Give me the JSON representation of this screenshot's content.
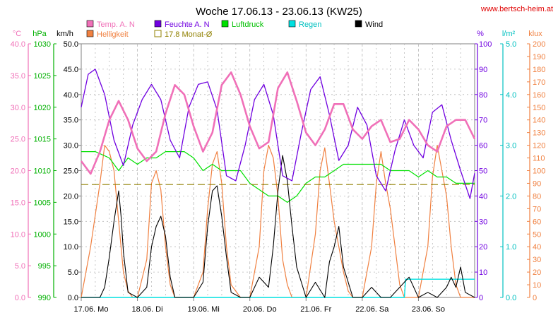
{
  "title": "Woche 17.06.13 - 23.06.13 (KW25)",
  "website": "www.bertsch-heim.at",
  "colors": {
    "temp": "#f070b8",
    "hpa": "#00b000",
    "kmh": "#000000",
    "humidity": "#7000e0",
    "rain": "#00c0c0",
    "klux": "#f08040",
    "avg": "#908000",
    "wind": "#000000",
    "pressure": "#00e000",
    "brightness": "#f08040",
    "website": "#e00000",
    "grid": "#b8b8b8"
  },
  "legend": [
    {
      "label": "Temp. A. N",
      "color": "#f070b8",
      "kind": "box"
    },
    {
      "label": "Feuchte A. N",
      "color": "#7000e0",
      "kind": "box"
    },
    {
      "label": "Luftdruck",
      "color": "#00e000",
      "kind": "box"
    },
    {
      "label": "Regen",
      "color": "#00e0e0",
      "kind": "box"
    },
    {
      "label": "Wind",
      "color": "#000000",
      "kind": "box"
    },
    {
      "label": "Helligkeit",
      "color": "#f08040",
      "kind": "box"
    },
    {
      "label": "17.8 Monat-Ø",
      "color": "#908000",
      "kind": "outline"
    }
  ],
  "axis_units": {
    "temp": "°C",
    "hpa": "hPa",
    "kmh": "km/h",
    "pct": "%",
    "rain": "l/m²",
    "klux": "klux"
  },
  "chart_data": {
    "type": "line",
    "title": "Woche 17.06.13 - 23.06.13 (KW25)",
    "x_ticks": [
      "17.06.  Mo",
      "18.06.  Di",
      "19.06.  Mi",
      "20.06.  Do",
      "21.06.  Fr",
      "22.06.  Sa",
      "23.06.  So"
    ],
    "x_unit": "hours since 17.06. 00:00",
    "x_range": [
      0,
      168
    ],
    "axes": {
      "temp_C": {
        "range": [
          0,
          40
        ],
        "ticks": [
          "0.0",
          "5.0",
          "10.0",
          "15.0",
          "20.0",
          "25.0",
          "30.0",
          "35.0",
          "40.0"
        ]
      },
      "pressure_hPa": {
        "range": [
          990,
          1030
        ],
        "ticks": [
          "990",
          "995",
          "1000",
          "1005",
          "1010",
          "1015",
          "1020",
          "1025",
          "1030"
        ]
      },
      "wind_kmh": {
        "range": [
          0,
          50
        ],
        "ticks": [
          "0.0",
          "5.0",
          "10.0",
          "15.0",
          "20.0",
          "25.0",
          "30.0",
          "35.0",
          "40.0",
          "45.0",
          "50.0"
        ]
      },
      "humidity_pct": {
        "range": [
          0,
          100
        ],
        "ticks": [
          "0",
          "10",
          "20",
          "30",
          "40",
          "50",
          "60",
          "70",
          "80",
          "90",
          "100"
        ]
      },
      "rain_lm2": {
        "range": [
          0,
          5
        ],
        "ticks": [
          "0.0",
          "1.0",
          "2.0",
          "3.0",
          "4.0",
          "5.0"
        ]
      },
      "brightness_klux": {
        "range": [
          0,
          200
        ],
        "ticks": [
          "0",
          "10",
          "20",
          "30",
          "40",
          "50",
          "60",
          "70",
          "80",
          "90",
          "100",
          "110",
          "120",
          "130",
          "140",
          "150",
          "160",
          "170",
          "180",
          "190",
          "200"
        ]
      }
    },
    "grid": true,
    "monthly_avg_temp_C": 17.8,
    "series": [
      {
        "name": "Temp. A. N",
        "axis": "temp_C",
        "x": [
          0,
          4,
          8,
          12,
          16,
          20,
          24,
          28,
          32,
          36,
          40,
          44,
          48,
          52,
          56,
          60,
          64,
          68,
          72,
          76,
          80,
          84,
          88,
          92,
          96,
          100,
          104,
          108,
          112,
          116,
          120,
          124,
          128,
          132,
          136,
          140,
          144,
          148,
          152,
          156,
          160,
          164,
          168
        ],
        "y": [
          21.5,
          19.5,
          23,
          28,
          31,
          28,
          23.5,
          21.5,
          23,
          29,
          33.5,
          32,
          27,
          23,
          26,
          33.5,
          35.5,
          32,
          27,
          23.5,
          24.5,
          33,
          35.5,
          31,
          26,
          24,
          26.5,
          30.5,
          30.5,
          26.5,
          25,
          27,
          28,
          24.5,
          25,
          28,
          26.5,
          24,
          23,
          27,
          28,
          28,
          25
        ]
      },
      {
        "name": "Feuchte A. N",
        "axis": "humidity_pct",
        "x": [
          0,
          3,
          6,
          10,
          14,
          18,
          22,
          26,
          30,
          34,
          38,
          42,
          46,
          50,
          54,
          58,
          62,
          66,
          70,
          74,
          78,
          82,
          86,
          90,
          94,
          98,
          102,
          106,
          110,
          114,
          118,
          122,
          126,
          130,
          134,
          138,
          142,
          146,
          150,
          154,
          158,
          162,
          166,
          168
        ],
        "y": [
          75,
          88,
          90,
          80,
          62,
          52,
          68,
          78,
          84,
          78,
          62,
          55,
          75,
          84,
          85,
          74,
          48,
          46,
          60,
          78,
          84,
          72,
          48,
          46,
          65,
          82,
          87,
          72,
          54,
          60,
          75,
          68,
          48,
          42,
          58,
          70,
          60,
          55,
          73,
          76,
          62,
          50,
          39,
          49
        ]
      },
      {
        "name": "Luftdruck",
        "axis": "pressure_hPa",
        "x": [
          0,
          6,
          12,
          16,
          20,
          24,
          28,
          32,
          36,
          40,
          44,
          48,
          52,
          56,
          60,
          64,
          68,
          72,
          76,
          80,
          84,
          88,
          92,
          96,
          100,
          104,
          108,
          112,
          116,
          120,
          124,
          128,
          132,
          136,
          140,
          144,
          148,
          152,
          156,
          160,
          164,
          168
        ],
        "y": [
          1013,
          1013,
          1012,
          1010,
          1012,
          1011,
          1012,
          1012,
          1013,
          1013,
          1013,
          1012,
          1010,
          1011,
          1010,
          1010,
          1010,
          1008,
          1007,
          1006,
          1006,
          1005,
          1006,
          1008,
          1009,
          1009,
          1010,
          1011,
          1011,
          1011,
          1011,
          1011,
          1010,
          1010,
          1010,
          1009,
          1010,
          1009,
          1009,
          1008,
          1008,
          1008
        ]
      },
      {
        "name": "Wind",
        "axis": "wind_kmh",
        "x": [
          0,
          4,
          8,
          10,
          12,
          14,
          16,
          17,
          18,
          20,
          24,
          28,
          30,
          32,
          34,
          36,
          38,
          40,
          44,
          48,
          52,
          54,
          56,
          58,
          60,
          62,
          64,
          68,
          72,
          76,
          80,
          82,
          84,
          86,
          88,
          90,
          92,
          96,
          100,
          104,
          106,
          108,
          110,
          112,
          116,
          120,
          124,
          128,
          132,
          136,
          140,
          144,
          148,
          152,
          156,
          158,
          160,
          162,
          164,
          168
        ],
        "y": [
          0,
          0,
          0,
          2,
          8,
          15,
          21,
          16,
          9,
          1,
          0,
          2,
          10,
          14,
          16,
          12,
          4,
          0,
          0,
          0,
          3,
          14,
          21,
          22,
          16,
          8,
          1,
          0,
          0,
          4,
          2,
          10,
          21,
          28,
          23,
          14,
          6,
          0,
          3,
          0,
          7,
          10,
          14,
          6,
          0,
          0,
          2,
          0,
          0,
          2,
          4,
          0,
          1,
          0,
          2,
          4,
          2,
          6,
          1,
          0
        ]
      },
      {
        "name": "Helligkeit",
        "axis": "brightness_klux",
        "x": [
          0,
          4,
          8,
          10,
          12,
          14,
          16,
          18,
          20,
          22,
          24,
          28,
          30,
          32,
          34,
          36,
          38,
          40,
          42,
          44,
          48,
          52,
          54,
          56,
          58,
          60,
          62,
          64,
          66,
          68,
          72,
          76,
          78,
          80,
          82,
          84,
          86,
          88,
          90,
          92,
          96,
          100,
          102,
          104,
          106,
          108,
          110,
          112,
          114,
          116,
          120,
          124,
          126,
          128,
          130,
          132,
          134,
          136,
          138,
          140,
          144,
          148,
          150,
          152,
          154,
          156,
          158,
          160,
          162,
          164,
          166,
          168
        ],
        "y": [
          0,
          40,
          90,
          120,
          115,
          100,
          60,
          20,
          5,
          0,
          0,
          30,
          90,
          100,
          85,
          40,
          10,
          0,
          0,
          0,
          0,
          20,
          70,
          105,
          115,
          90,
          40,
          10,
          5,
          0,
          0,
          40,
          100,
          120,
          110,
          80,
          30,
          10,
          0,
          0,
          0,
          50,
          100,
          118,
          90,
          60,
          40,
          20,
          5,
          0,
          0,
          40,
          90,
          115,
          90,
          70,
          40,
          10,
          0,
          0,
          0,
          40,
          95,
          120,
          100,
          80,
          40,
          10,
          0,
          0,
          0,
          0
        ]
      },
      {
        "name": "Regen",
        "axis": "rain_lm2",
        "x": [
          0,
          138,
          138.5,
          168
        ],
        "y": [
          0,
          0,
          0.36,
          0.36
        ]
      },
      {
        "name": "17.8 Monat-Ø",
        "axis": "temp_C",
        "x": [
          0,
          168
        ],
        "y": [
          17.8,
          17.8
        ]
      }
    ]
  }
}
